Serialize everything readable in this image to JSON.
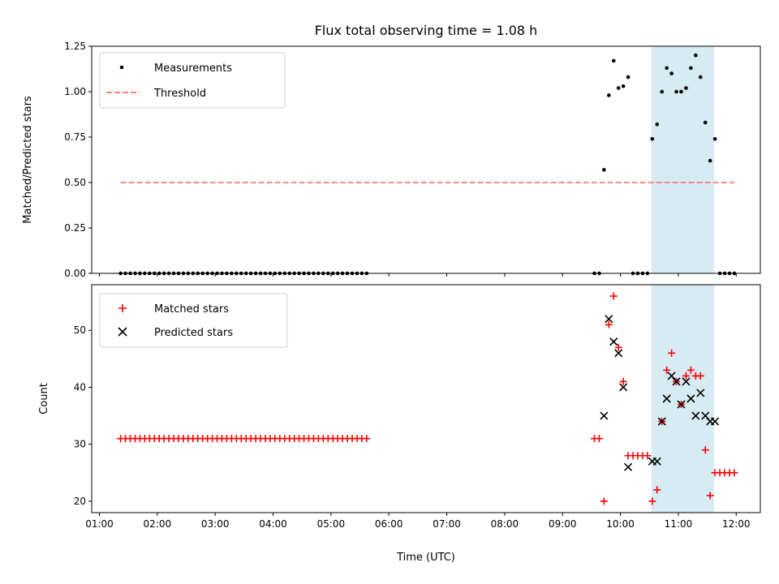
{
  "chart_data": [
    {
      "type": "scatter",
      "title": "Flux total observing time = 1.08 h",
      "xlabel": "",
      "ylabel": "Matched/Predicted stars",
      "xlim": [
        "00:52",
        "12:25"
      ],
      "ylim": [
        0,
        1.25
      ],
      "yticks": [
        0.0,
        0.25,
        0.5,
        0.75,
        1.0,
        1.25
      ],
      "ytick_labels": [
        "0.00",
        "0.25",
        "0.50",
        "0.75",
        "1.00",
        "1.25"
      ],
      "grid": false,
      "legend_position": "top-left",
      "shaded_span": {
        "x": [
          "10:32",
          "11:37"
        ],
        "color": "#add8e6"
      },
      "series": [
        {
          "name": "Measurements",
          "marker": "dot",
          "color": "#000000",
          "points": [
            [
              "01:22",
              0
            ],
            [
              "01:27",
              0
            ],
            [
              "01:32",
              0
            ],
            [
              "01:37",
              0
            ],
            [
              "01:42",
              0
            ],
            [
              "01:47",
              0
            ],
            [
              "01:52",
              0
            ],
            [
              "01:57",
              0
            ],
            [
              "02:02",
              0
            ],
            [
              "02:07",
              0
            ],
            [
              "02:12",
              0
            ],
            [
              "02:17",
              0
            ],
            [
              "02:22",
              0
            ],
            [
              "02:27",
              0
            ],
            [
              "02:32",
              0
            ],
            [
              "02:37",
              0
            ],
            [
              "02:42",
              0
            ],
            [
              "02:47",
              0
            ],
            [
              "02:52",
              0
            ],
            [
              "02:57",
              0
            ],
            [
              "03:02",
              0
            ],
            [
              "03:07",
              0
            ],
            [
              "03:12",
              0
            ],
            [
              "03:17",
              0
            ],
            [
              "03:22",
              0
            ],
            [
              "03:27",
              0
            ],
            [
              "03:32",
              0
            ],
            [
              "03:37",
              0
            ],
            [
              "03:42",
              0
            ],
            [
              "03:47",
              0
            ],
            [
              "03:52",
              0
            ],
            [
              "03:57",
              0
            ],
            [
              "04:02",
              0
            ],
            [
              "04:07",
              0
            ],
            [
              "04:12",
              0
            ],
            [
              "04:17",
              0
            ],
            [
              "04:22",
              0
            ],
            [
              "04:27",
              0
            ],
            [
              "04:32",
              0
            ],
            [
              "04:37",
              0
            ],
            [
              "04:42",
              0
            ],
            [
              "04:47",
              0
            ],
            [
              "04:52",
              0
            ],
            [
              "04:57",
              0
            ],
            [
              "05:02",
              0
            ],
            [
              "05:07",
              0
            ],
            [
              "05:12",
              0
            ],
            [
              "05:17",
              0
            ],
            [
              "05:22",
              0
            ],
            [
              "05:27",
              0
            ],
            [
              "05:32",
              0
            ],
            [
              "05:37",
              0
            ],
            [
              "09:33",
              0
            ],
            [
              "09:38",
              0
            ],
            [
              "09:43",
              0.57
            ],
            [
              "09:48",
              0.98
            ],
            [
              "09:53",
              1.17
            ],
            [
              "09:58",
              1.02
            ],
            [
              "10:03",
              1.03
            ],
            [
              "10:08",
              1.08
            ],
            [
              "10:13",
              0
            ],
            [
              "10:18",
              0
            ],
            [
              "10:23",
              0
            ],
            [
              "10:28",
              0
            ],
            [
              "10:33",
              0.74
            ],
            [
              "10:38",
              0.82
            ],
            [
              "10:43",
              1.0
            ],
            [
              "10:48",
              1.13
            ],
            [
              "10:53",
              1.1
            ],
            [
              "10:58",
              1.0
            ],
            [
              "11:03",
              1.0
            ],
            [
              "11:08",
              1.02
            ],
            [
              "11:13",
              1.13
            ],
            [
              "11:18",
              1.2
            ],
            [
              "11:23",
              1.08
            ],
            [
              "11:28",
              0.83
            ],
            [
              "11:33",
              0.62
            ],
            [
              "11:38",
              0.74
            ],
            [
              "11:43",
              0
            ],
            [
              "11:48",
              0
            ],
            [
              "11:53",
              0
            ],
            [
              "11:58",
              0
            ]
          ]
        },
        {
          "name": "Threshold",
          "marker": "dashed-line",
          "color": "#ff7f7f",
          "points": [
            [
              "01:22",
              0.5
            ],
            [
              "11:58",
              0.5
            ]
          ]
        }
      ]
    },
    {
      "type": "scatter",
      "title": "",
      "xlabel": "Time (UTC)",
      "ylabel": "Count",
      "xlim": [
        "00:52",
        "12:25"
      ],
      "ylim": [
        18,
        58
      ],
      "yticks": [
        20,
        30,
        40,
        50
      ],
      "ytick_labels": [
        "20",
        "30",
        "40",
        "50"
      ],
      "xticks": [
        "01:00",
        "02:00",
        "03:00",
        "04:00",
        "05:00",
        "06:00",
        "07:00",
        "08:00",
        "09:00",
        "10:00",
        "11:00",
        "12:00"
      ],
      "grid": false,
      "legend_position": "top-left",
      "shaded_span": {
        "x": [
          "10:32",
          "11:37"
        ],
        "color": "#add8e6"
      },
      "series": [
        {
          "name": "Matched stars",
          "marker": "plus",
          "color": "#ff0000",
          "points": [
            [
              "01:22",
              31
            ],
            [
              "01:27",
              31
            ],
            [
              "01:32",
              31
            ],
            [
              "01:37",
              31
            ],
            [
              "01:42",
              31
            ],
            [
              "01:47",
              31
            ],
            [
              "01:52",
              31
            ],
            [
              "01:57",
              31
            ],
            [
              "02:02",
              31
            ],
            [
              "02:07",
              31
            ],
            [
              "02:12",
              31
            ],
            [
              "02:17",
              31
            ],
            [
              "02:22",
              31
            ],
            [
              "02:27",
              31
            ],
            [
              "02:32",
              31
            ],
            [
              "02:37",
              31
            ],
            [
              "02:42",
              31
            ],
            [
              "02:47",
              31
            ],
            [
              "02:52",
              31
            ],
            [
              "02:57",
              31
            ],
            [
              "03:02",
              31
            ],
            [
              "03:07",
              31
            ],
            [
              "03:12",
              31
            ],
            [
              "03:17",
              31
            ],
            [
              "03:22",
              31
            ],
            [
              "03:27",
              31
            ],
            [
              "03:32",
              31
            ],
            [
              "03:37",
              31
            ],
            [
              "03:42",
              31
            ],
            [
              "03:47",
              31
            ],
            [
              "03:52",
              31
            ],
            [
              "03:57",
              31
            ],
            [
              "04:02",
              31
            ],
            [
              "04:07",
              31
            ],
            [
              "04:12",
              31
            ],
            [
              "04:17",
              31
            ],
            [
              "04:22",
              31
            ],
            [
              "04:27",
              31
            ],
            [
              "04:32",
              31
            ],
            [
              "04:37",
              31
            ],
            [
              "04:42",
              31
            ],
            [
              "04:47",
              31
            ],
            [
              "04:52",
              31
            ],
            [
              "04:57",
              31
            ],
            [
              "05:02",
              31
            ],
            [
              "05:07",
              31
            ],
            [
              "05:12",
              31
            ],
            [
              "05:17",
              31
            ],
            [
              "05:22",
              31
            ],
            [
              "05:27",
              31
            ],
            [
              "05:32",
              31
            ],
            [
              "05:37",
              31
            ],
            [
              "09:33",
              31
            ],
            [
              "09:38",
              31
            ],
            [
              "09:43",
              20
            ],
            [
              "09:48",
              51
            ],
            [
              "09:53",
              56
            ],
            [
              "09:58",
              47
            ],
            [
              "10:03",
              41
            ],
            [
              "10:08",
              28
            ],
            [
              "10:13",
              28
            ],
            [
              "10:18",
              28
            ],
            [
              "10:23",
              28
            ],
            [
              "10:28",
              28
            ],
            [
              "10:33",
              20
            ],
            [
              "10:38",
              22
            ],
            [
              "10:43",
              34
            ],
            [
              "10:48",
              43
            ],
            [
              "10:53",
              46
            ],
            [
              "10:58",
              41
            ],
            [
              "11:03",
              37
            ],
            [
              "11:08",
              42
            ],
            [
              "11:13",
              43
            ],
            [
              "11:18",
              42
            ],
            [
              "11:23",
              42
            ],
            [
              "11:28",
              29
            ],
            [
              "11:33",
              21
            ],
            [
              "11:38",
              25
            ],
            [
              "11:43",
              25
            ],
            [
              "11:48",
              25
            ],
            [
              "11:53",
              25
            ],
            [
              "11:58",
              25
            ]
          ]
        },
        {
          "name": "Predicted stars",
          "marker": "x",
          "color": "#000000",
          "points": [
            [
              "09:43",
              35
            ],
            [
              "09:48",
              52
            ],
            [
              "09:53",
              48
            ],
            [
              "09:58",
              46
            ],
            [
              "10:03",
              40
            ],
            [
              "10:08",
              26
            ],
            [
              "10:33",
              27
            ],
            [
              "10:38",
              27
            ],
            [
              "10:43",
              34
            ],
            [
              "10:48",
              38
            ],
            [
              "10:53",
              42
            ],
            [
              "10:58",
              41
            ],
            [
              "11:03",
              37
            ],
            [
              "11:08",
              41
            ],
            [
              "11:13",
              38
            ],
            [
              "11:18",
              35
            ],
            [
              "11:23",
              39
            ],
            [
              "11:28",
              35
            ],
            [
              "11:33",
              34
            ],
            [
              "11:38",
              34
            ]
          ]
        }
      ]
    }
  ]
}
